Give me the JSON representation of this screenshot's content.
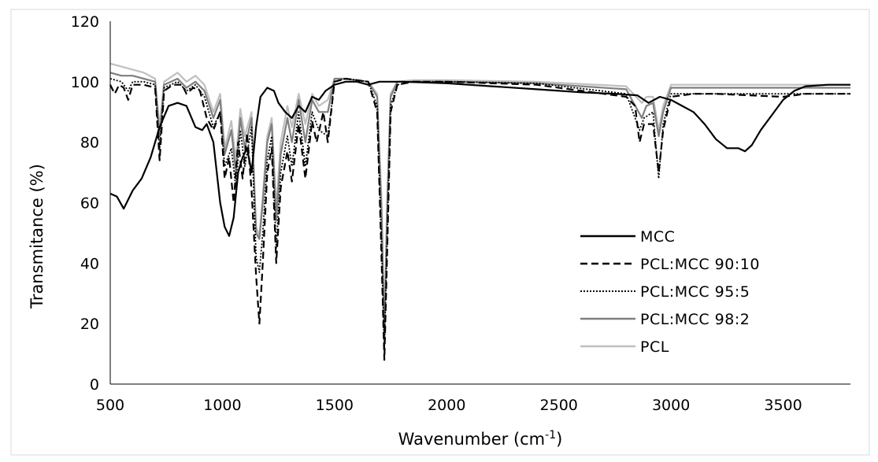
{
  "chart_data": {
    "type": "line",
    "title": "",
    "xlabel": "Wavenumber (cm",
    "xlabel_sup": "-1",
    "xlabel_suffix": ")",
    "ylabel": "Transmitance (%)",
    "xlim": [
      500,
      3800
    ],
    "ylim": [
      0,
      120
    ],
    "x_ticks": [
      "500",
      "1000",
      "1500",
      "2000",
      "2500",
      "3000",
      "3500"
    ],
    "y_ticks": [
      "0",
      "20",
      "40",
      "60",
      "80",
      "100",
      "120"
    ],
    "grid": false,
    "legend_position": "bottom-right",
    "series": [
      {
        "name": "MCC",
        "color": "#000000",
        "style": "solid",
        "points": [
          [
            500,
            63
          ],
          [
            530,
            62
          ],
          [
            560,
            58
          ],
          [
            600,
            64
          ],
          [
            640,
            68
          ],
          [
            680,
            75
          ],
          [
            720,
            85
          ],
          [
            760,
            92
          ],
          [
            800,
            93
          ],
          [
            840,
            92
          ],
          [
            880,
            85
          ],
          [
            910,
            84
          ],
          [
            930,
            86
          ],
          [
            960,
            80
          ],
          [
            990,
            60
          ],
          [
            1010,
            52
          ],
          [
            1030,
            49
          ],
          [
            1050,
            55
          ],
          [
            1070,
            70
          ],
          [
            1090,
            75
          ],
          [
            1110,
            78
          ],
          [
            1130,
            70
          ],
          [
            1150,
            85
          ],
          [
            1170,
            95
          ],
          [
            1200,
            98
          ],
          [
            1230,
            97
          ],
          [
            1250,
            93
          ],
          [
            1280,
            90
          ],
          [
            1310,
            88
          ],
          [
            1340,
            92
          ],
          [
            1370,
            90
          ],
          [
            1400,
            95
          ],
          [
            1430,
            94
          ],
          [
            1460,
            97
          ],
          [
            1500,
            99
          ],
          [
            1550,
            100
          ],
          [
            1600,
            100
          ],
          [
            1650,
            99
          ],
          [
            1700,
            100
          ],
          [
            1800,
            100
          ],
          [
            2000,
            99.5
          ],
          [
            2200,
            98.5
          ],
          [
            2400,
            97.5
          ],
          [
            2600,
            96.5
          ],
          [
            2750,
            96
          ],
          [
            2850,
            95.5
          ],
          [
            2900,
            93
          ],
          [
            2950,
            95
          ],
          [
            3000,
            94
          ],
          [
            3050,
            92
          ],
          [
            3100,
            90
          ],
          [
            3150,
            86
          ],
          [
            3200,
            81
          ],
          [
            3250,
            78
          ],
          [
            3300,
            78
          ],
          [
            3330,
            77
          ],
          [
            3360,
            79
          ],
          [
            3400,
            84
          ],
          [
            3450,
            89
          ],
          [
            3500,
            94
          ],
          [
            3550,
            97
          ],
          [
            3600,
            98.5
          ],
          [
            3700,
            99
          ],
          [
            3800,
            99
          ]
        ]
      },
      {
        "name": "PCL:MCC 90:10",
        "color": "#000000",
        "style": "dashed",
        "points": [
          [
            500,
            99
          ],
          [
            520,
            96
          ],
          [
            540,
            99
          ],
          [
            560,
            98
          ],
          [
            580,
            94
          ],
          [
            600,
            99
          ],
          [
            650,
            99
          ],
          [
            700,
            98
          ],
          [
            720,
            74
          ],
          [
            740,
            97
          ],
          [
            780,
            99
          ],
          [
            820,
            99
          ],
          [
            840,
            96
          ],
          [
            870,
            98
          ],
          [
            900,
            97
          ],
          [
            930,
            88
          ],
          [
            960,
            84
          ],
          [
            990,
            90
          ],
          [
            1010,
            68
          ],
          [
            1030,
            75
          ],
          [
            1050,
            60
          ],
          [
            1070,
            80
          ],
          [
            1090,
            68
          ],
          [
            1110,
            83
          ],
          [
            1130,
            64
          ],
          [
            1150,
            36
          ],
          [
            1165,
            20
          ],
          [
            1180,
            40
          ],
          [
            1200,
            70
          ],
          [
            1220,
            78
          ],
          [
            1240,
            40
          ],
          [
            1260,
            65
          ],
          [
            1290,
            77
          ],
          [
            1310,
            67
          ],
          [
            1340,
            86
          ],
          [
            1370,
            68
          ],
          [
            1400,
            87
          ],
          [
            1420,
            80
          ],
          [
            1450,
            90
          ],
          [
            1470,
            80
          ],
          [
            1500,
            100
          ],
          [
            1550,
            101
          ],
          [
            1650,
            100
          ],
          [
            1690,
            90
          ],
          [
            1710,
            40
          ],
          [
            1722,
            8
          ],
          [
            1735,
            45
          ],
          [
            1750,
            90
          ],
          [
            1780,
            99
          ],
          [
            1850,
            100
          ],
          [
            2000,
            100
          ],
          [
            2400,
            99
          ],
          [
            2800,
            95
          ],
          [
            2840,
            92
          ],
          [
            2860,
            80
          ],
          [
            2880,
            86
          ],
          [
            2920,
            86
          ],
          [
            2945,
            70
          ],
          [
            2965,
            84
          ],
          [
            3000,
            95
          ],
          [
            3100,
            96
          ],
          [
            3200,
            96
          ],
          [
            3500,
            95
          ],
          [
            3600,
            96
          ],
          [
            3800,
            96
          ]
        ]
      },
      {
        "name": "PCL:MCC 95:5",
        "color": "#000000",
        "style": "dotted",
        "points": [
          [
            500,
            101
          ],
          [
            550,
            100
          ],
          [
            580,
            97
          ],
          [
            600,
            100
          ],
          [
            650,
            100
          ],
          [
            700,
            99
          ],
          [
            720,
            78
          ],
          [
            740,
            98
          ],
          [
            800,
            100
          ],
          [
            840,
            97
          ],
          [
            880,
            99
          ],
          [
            920,
            95
          ],
          [
            960,
            85
          ],
          [
            990,
            90
          ],
          [
            1010,
            72
          ],
          [
            1040,
            78
          ],
          [
            1060,
            65
          ],
          [
            1080,
            84
          ],
          [
            1100,
            72
          ],
          [
            1130,
            85
          ],
          [
            1150,
            42
          ],
          [
            1165,
            37
          ],
          [
            1180,
            50
          ],
          [
            1200,
            74
          ],
          [
            1220,
            82
          ],
          [
            1240,
            45
          ],
          [
            1260,
            70
          ],
          [
            1290,
            82
          ],
          [
            1310,
            72
          ],
          [
            1340,
            90
          ],
          [
            1370,
            72
          ],
          [
            1400,
            90
          ],
          [
            1430,
            84
          ],
          [
            1470,
            82
          ],
          [
            1500,
            100
          ],
          [
            1550,
            101
          ],
          [
            1650,
            100
          ],
          [
            1690,
            92
          ],
          [
            1710,
            45
          ],
          [
            1722,
            12
          ],
          [
            1735,
            50
          ],
          [
            1750,
            92
          ],
          [
            1780,
            99
          ],
          [
            1850,
            100
          ],
          [
            2000,
            100
          ],
          [
            2400,
            99.5
          ],
          [
            2800,
            96
          ],
          [
            2860,
            84
          ],
          [
            2880,
            88
          ],
          [
            2920,
            90
          ],
          [
            2945,
            68
          ],
          [
            2965,
            86
          ],
          [
            3000,
            96
          ],
          [
            3100,
            96
          ],
          [
            3500,
            96
          ],
          [
            3800,
            96
          ]
        ]
      },
      {
        "name": "PCL:MCC 98:2",
        "color": "#7f7f7f",
        "style": "solid",
        "points": [
          [
            500,
            103
          ],
          [
            550,
            102
          ],
          [
            600,
            102
          ],
          [
            650,
            101
          ],
          [
            700,
            100
          ],
          [
            720,
            82
          ],
          [
            740,
            99
          ],
          [
            800,
            101
          ],
          [
            840,
            98
          ],
          [
            880,
            100
          ],
          [
            920,
            97
          ],
          [
            960,
            88
          ],
          [
            990,
            94
          ],
          [
            1010,
            76
          ],
          [
            1040,
            84
          ],
          [
            1060,
            70
          ],
          [
            1080,
            88
          ],
          [
            1100,
            78
          ],
          [
            1130,
            88
          ],
          [
            1150,
            50
          ],
          [
            1165,
            48
          ],
          [
            1180,
            60
          ],
          [
            1200,
            80
          ],
          [
            1220,
            86
          ],
          [
            1240,
            54
          ],
          [
            1260,
            76
          ],
          [
            1290,
            88
          ],
          [
            1310,
            80
          ],
          [
            1340,
            94
          ],
          [
            1370,
            80
          ],
          [
            1400,
            94
          ],
          [
            1430,
            90
          ],
          [
            1470,
            90
          ],
          [
            1500,
            101
          ],
          [
            1550,
            101
          ],
          [
            1650,
            100
          ],
          [
            1690,
            95
          ],
          [
            1710,
            55
          ],
          [
            1722,
            15
          ],
          [
            1735,
            60
          ],
          [
            1750,
            95
          ],
          [
            1780,
            100
          ],
          [
            1850,
            100
          ],
          [
            2000,
            100
          ],
          [
            2400,
            99.5
          ],
          [
            2800,
            97.5
          ],
          [
            2870,
            88
          ],
          [
            2890,
            92
          ],
          [
            2920,
            93
          ],
          [
            2945,
            82
          ],
          [
            2965,
            90
          ],
          [
            3000,
            98
          ],
          [
            3100,
            98
          ],
          [
            3500,
            98
          ],
          [
            3800,
            98
          ]
        ]
      },
      {
        "name": "PCL",
        "color": "#bfbfbf",
        "style": "solid",
        "points": [
          [
            500,
            106
          ],
          [
            550,
            105
          ],
          [
            600,
            104
          ],
          [
            650,
            103
          ],
          [
            700,
            101
          ],
          [
            720,
            85
          ],
          [
            740,
            100
          ],
          [
            800,
            103
          ],
          [
            840,
            100
          ],
          [
            880,
            102
          ],
          [
            920,
            99
          ],
          [
            960,
            90
          ],
          [
            990,
            96
          ],
          [
            1010,
            78
          ],
          [
            1040,
            87
          ],
          [
            1060,
            74
          ],
          [
            1080,
            91
          ],
          [
            1100,
            82
          ],
          [
            1130,
            90
          ],
          [
            1150,
            52
          ],
          [
            1165,
            49
          ],
          [
            1180,
            62
          ],
          [
            1200,
            82
          ],
          [
            1220,
            88
          ],
          [
            1240,
            58
          ],
          [
            1260,
            80
          ],
          [
            1290,
            92
          ],
          [
            1310,
            85
          ],
          [
            1340,
            96
          ],
          [
            1370,
            86
          ],
          [
            1400,
            96
          ],
          [
            1430,
            92
          ],
          [
            1470,
            94
          ],
          [
            1500,
            101
          ],
          [
            1550,
            101
          ],
          [
            1650,
            100
          ],
          [
            1690,
            96
          ],
          [
            1710,
            60
          ],
          [
            1722,
            18
          ],
          [
            1735,
            62
          ],
          [
            1750,
            96
          ],
          [
            1780,
            100
          ],
          [
            1850,
            100.5
          ],
          [
            2000,
            100.5
          ],
          [
            2400,
            100
          ],
          [
            2800,
            98.5
          ],
          [
            2870,
            93
          ],
          [
            2890,
            95
          ],
          [
            2920,
            95
          ],
          [
            2945,
            84
          ],
          [
            2965,
            92
          ],
          [
            3000,
            99
          ],
          [
            3100,
            99
          ],
          [
            3500,
            99
          ],
          [
            3800,
            99
          ]
        ]
      }
    ]
  }
}
